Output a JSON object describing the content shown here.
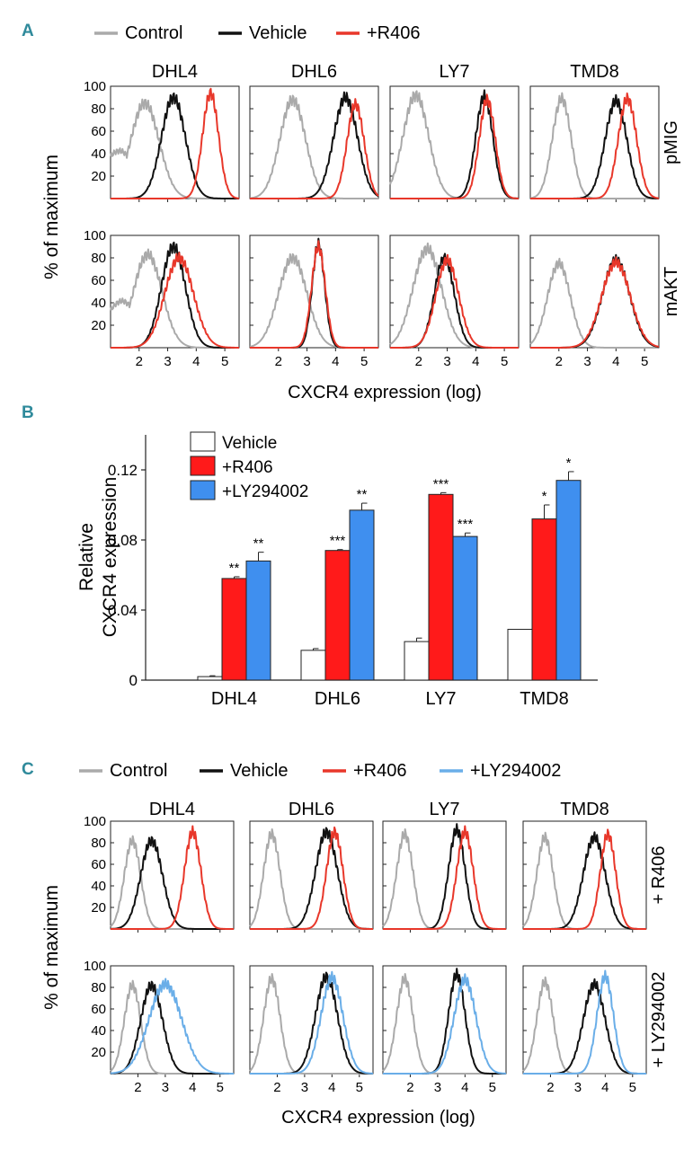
{
  "chart_data": [
    {
      "panel": "A",
      "type": "histogram-grid",
      "legend": [
        {
          "label": "Control",
          "color": "#aaaaaa"
        },
        {
          "label": "Vehicle",
          "color": "#111111"
        },
        {
          "label": "+R406",
          "color": "#e8372a"
        }
      ],
      "columns": [
        "DHL4",
        "DHL6",
        "LY7",
        "TMD8"
      ],
      "rows": [
        "pMIG",
        "mAKT"
      ],
      "ylabel": "% of maximum",
      "xlabel": "CXCR4 expression (log)",
      "xticks": [
        "2",
        "3",
        "4",
        "5"
      ],
      "yticks": [
        "20",
        "40",
        "60",
        "80",
        "100"
      ],
      "xlim": [
        1.0,
        5.5
      ],
      "ylim": [
        0,
        100
      ],
      "peaks": [
        [
          [
            {
              "series": "Control",
              "center": 2.2,
              "width": 0.5,
              "height": 85,
              "shoulder": true
            },
            {
              "series": "Vehicle",
              "center": 3.2,
              "width": 0.42,
              "height": 90
            },
            {
              "series": "+R406",
              "center": 4.5,
              "width": 0.28,
              "height": 94
            }
          ],
          [
            {
              "series": "Control",
              "center": 2.5,
              "width": 0.45,
              "height": 88
            },
            {
              "series": "Vehicle",
              "center": 4.35,
              "width": 0.42,
              "height": 90
            },
            {
              "series": "+R406",
              "center": 4.7,
              "width": 0.3,
              "height": 84
            }
          ],
          [
            {
              "series": "Control",
              "center": 1.9,
              "width": 0.45,
              "height": 92
            },
            {
              "series": "Vehicle",
              "center": 4.3,
              "width": 0.3,
              "height": 91
            },
            {
              "series": "+R406",
              "center": 4.4,
              "width": 0.28,
              "height": 88
            }
          ],
          [
            {
              "series": "Control",
              "center": 2.1,
              "width": 0.33,
              "height": 89
            },
            {
              "series": "Vehicle",
              "center": 4.0,
              "width": 0.38,
              "height": 87
            },
            {
              "series": "+R406",
              "center": 4.4,
              "width": 0.32,
              "height": 89
            }
          ]
        ],
        [
          [
            {
              "series": "Control",
              "center": 2.3,
              "width": 0.5,
              "height": 83,
              "shoulder": true
            },
            {
              "series": "Vehicle",
              "center": 3.2,
              "width": 0.42,
              "height": 90
            },
            {
              "series": "+R406",
              "center": 3.4,
              "width": 0.5,
              "height": 80
            }
          ],
          [
            {
              "series": "Control",
              "center": 2.5,
              "width": 0.5,
              "height": 80
            },
            {
              "series": "Vehicle",
              "center": 3.4,
              "width": 0.22,
              "height": 92
            },
            {
              "series": "+R406",
              "center": 3.4,
              "width": 0.24,
              "height": 90
            }
          ],
          [
            {
              "series": "Control",
              "center": 2.3,
              "width": 0.5,
              "height": 88
            },
            {
              "series": "Vehicle",
              "center": 2.9,
              "width": 0.35,
              "height": 80
            },
            {
              "series": "+R406",
              "center": 3.0,
              "width": 0.4,
              "height": 78
            }
          ],
          [
            {
              "series": "Control",
              "center": 2.0,
              "width": 0.4,
              "height": 75
            },
            {
              "series": "Vehicle",
              "center": 4.0,
              "width": 0.48,
              "height": 78
            },
            {
              "series": "+R406",
              "center": 4.0,
              "width": 0.5,
              "height": 76
            }
          ]
        ]
      ]
    },
    {
      "panel": "B",
      "type": "bar",
      "ylabel": "Relative CXCR4 expression",
      "ylabel_lines": [
        "Relative",
        "CXCR4 expression"
      ],
      "ylim": [
        0,
        0.14
      ],
      "yticks": [
        {
          "value": 0,
          "label": "0"
        },
        {
          "value": 0.04,
          "label": "0.04"
        },
        {
          "value": 0.08,
          "label": "0.08"
        },
        {
          "value": 0.12,
          "label": "0.12"
        }
      ],
      "categories": [
        "DHL4",
        "DHL6",
        "LY7",
        "TMD8"
      ],
      "series": [
        {
          "name": "Vehicle",
          "color": "#ffffff",
          "values": [
            0.002,
            0.017,
            0.022,
            0.029
          ],
          "errors": [
            0.0005,
            0.001,
            0.002,
            0.0
          ],
          "sig": [
            "",
            "",
            "",
            ""
          ]
        },
        {
          "name": "+R406",
          "color": "#ff1a1a",
          "values": [
            0.058,
            0.074,
            0.106,
            0.092
          ],
          "errors": [
            0.001,
            0.0005,
            0.001,
            0.008
          ],
          "sig": [
            "**",
            "***",
            "***",
            "*"
          ]
        },
        {
          "name": "+LY294002",
          "color": "#3f8fef",
          "values": [
            0.068,
            0.097,
            0.082,
            0.114
          ],
          "errors": [
            0.005,
            0.004,
            0.002,
            0.005
          ],
          "sig": [
            "**",
            "**",
            "***",
            "*"
          ]
        }
      ]
    },
    {
      "panel": "C",
      "type": "histogram-grid",
      "legend": [
        {
          "label": "Control",
          "color": "#aaaaaa"
        },
        {
          "label": "Vehicle",
          "color": "#111111"
        },
        {
          "label": "+R406",
          "color": "#e8372a"
        },
        {
          "label": "+LY294002",
          "color": "#6aaee8"
        }
      ],
      "columns": [
        "DHL4",
        "DHL6",
        "LY7",
        "TMD8"
      ],
      "rows": [
        "+ R406",
        "+ LY294002"
      ],
      "ylabel": "% of maximum",
      "xlabel": "CXCR4 expression (log)",
      "xticks": [
        "2",
        "3",
        "4",
        "5"
      ],
      "yticks": [
        "20",
        "40",
        "60",
        "80",
        "100"
      ],
      "xlim": [
        1.0,
        5.5
      ],
      "ylim": [
        0,
        100
      ],
      "peaks": [
        [
          [
            {
              "series": "Control",
              "center": 1.8,
              "width": 0.3,
              "height": 82
            },
            {
              "series": "Vehicle",
              "center": 2.5,
              "width": 0.4,
              "height": 82
            },
            {
              "series": "+R406",
              "center": 4.0,
              "width": 0.3,
              "height": 90
            }
          ],
          [
            {
              "series": "Control",
              "center": 1.8,
              "width": 0.3,
              "height": 88
            },
            {
              "series": "Vehicle",
              "center": 3.8,
              "width": 0.4,
              "height": 90
            },
            {
              "series": "+R406",
              "center": 4.1,
              "width": 0.3,
              "height": 90
            }
          ],
          [
            {
              "series": "Control",
              "center": 1.8,
              "width": 0.3,
              "height": 88
            },
            {
              "series": "Vehicle",
              "center": 3.7,
              "width": 0.3,
              "height": 92
            },
            {
              "series": "+R406",
              "center": 4.0,
              "width": 0.3,
              "height": 90
            }
          ],
          [
            {
              "series": "Control",
              "center": 1.8,
              "width": 0.3,
              "height": 85
            },
            {
              "series": "Vehicle",
              "center": 3.6,
              "width": 0.4,
              "height": 85
            },
            {
              "series": "+R406",
              "center": 4.1,
              "width": 0.28,
              "height": 88
            }
          ]
        ],
        [
          [
            {
              "series": "Control",
              "center": 1.8,
              "width": 0.3,
              "height": 82
            },
            {
              "series": "Vehicle",
              "center": 2.5,
              "width": 0.4,
              "height": 82
            },
            {
              "series": "+LY294002",
              "center": 3.0,
              "width": 0.6,
              "height": 83
            }
          ],
          [
            {
              "series": "Control",
              "center": 1.8,
              "width": 0.3,
              "height": 88
            },
            {
              "series": "Vehicle",
              "center": 3.8,
              "width": 0.4,
              "height": 90
            },
            {
              "series": "+LY294002",
              "center": 4.0,
              "width": 0.4,
              "height": 89
            }
          ],
          [
            {
              "series": "Control",
              "center": 1.8,
              "width": 0.3,
              "height": 88
            },
            {
              "series": "Vehicle",
              "center": 3.7,
              "width": 0.3,
              "height": 92
            },
            {
              "series": "+LY294002",
              "center": 4.0,
              "width": 0.4,
              "height": 87
            }
          ],
          [
            {
              "series": "Control",
              "center": 1.8,
              "width": 0.3,
              "height": 85
            },
            {
              "series": "Vehicle",
              "center": 3.6,
              "width": 0.4,
              "height": 83
            },
            {
              "series": "+LY294002",
              "center": 4.0,
              "width": 0.3,
              "height": 90
            }
          ]
        ]
      ]
    }
  ]
}
